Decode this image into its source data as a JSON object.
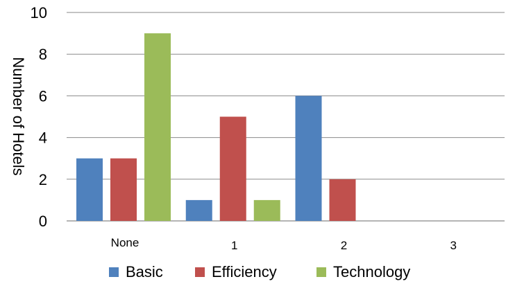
{
  "chart_data": {
    "type": "bar",
    "categories": [
      "None",
      "1",
      "2",
      "3"
    ],
    "series": [
      {
        "name": "Basic",
        "values": [
          3,
          1,
          6,
          0
        ],
        "color": "#4f81bd"
      },
      {
        "name": "Efficiency",
        "values": [
          3,
          5,
          2,
          0
        ],
        "color": "#c0504d"
      },
      {
        "name": "Technology",
        "values": [
          9,
          1,
          0,
          0
        ],
        "color": "#9bbb59"
      }
    ],
    "ylabel": "Number of Hotels",
    "ylim": [
      0,
      10
    ],
    "yticks": [
      0,
      2,
      4,
      6,
      8,
      10
    ],
    "grid": true,
    "legend_position": "bottom"
  }
}
